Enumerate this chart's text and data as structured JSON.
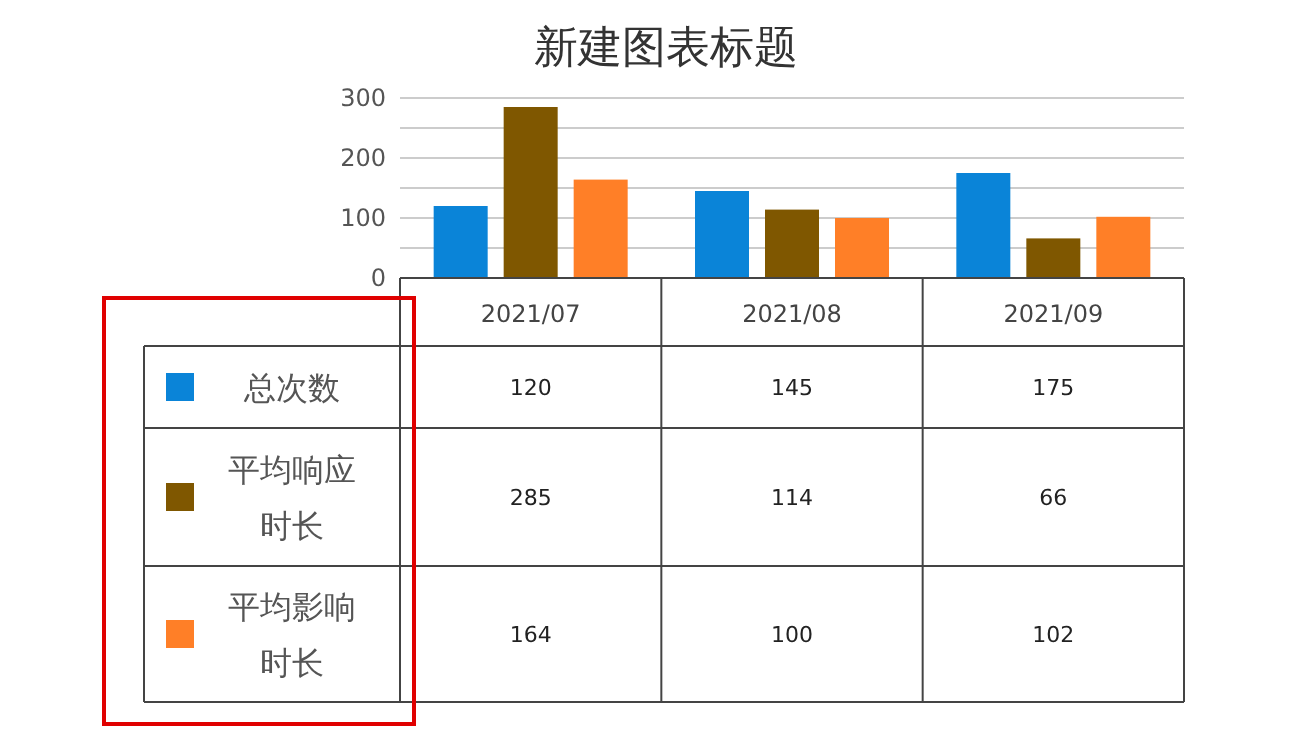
{
  "chart_data": {
    "type": "bar",
    "title": "新建图表标题",
    "categories": [
      "2021/07",
      "2021/08",
      "2021/09"
    ],
    "series": [
      {
        "name": "总次数",
        "color": "#0a84d8",
        "values": [
          120,
          145,
          175
        ]
      },
      {
        "name": "平均响应时长",
        "color": "#7f5700",
        "values": [
          285,
          114,
          66
        ]
      },
      {
        "name": "平均影响时长",
        "color": "#ff7f27",
        "values": [
          164,
          100,
          102
        ]
      }
    ],
    "ylim": [
      0,
      300
    ],
    "yticks": [
      0,
      {
        "value": 50,
        "label": null
      },
      100,
      {
        "value": 150,
        "label": null
      },
      200,
      {
        "value": 250,
        "label": null
      },
      300
    ],
    "grid": "y",
    "data_labels": true,
    "legend": "bottom left"
  }
}
